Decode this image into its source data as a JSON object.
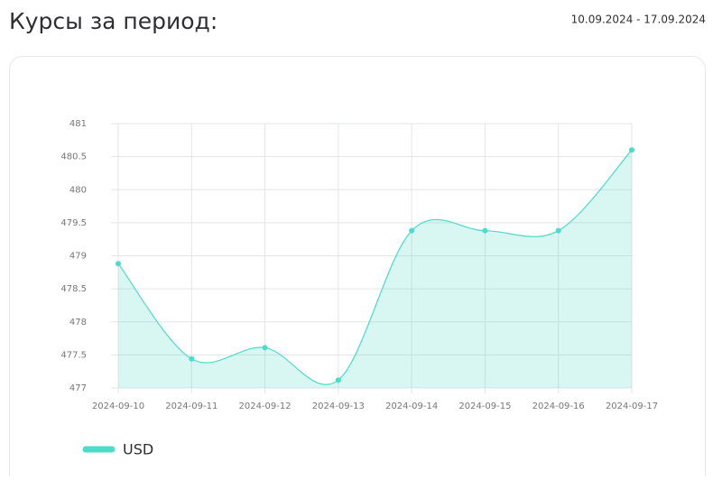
{
  "chart_data": {
    "type": "area",
    "title": "Курсы за период:",
    "subtitle": "10.09.2024 - 17.09.2024",
    "categories": [
      "2024-09-10",
      "2024-09-11",
      "2024-09-12",
      "2024-09-13",
      "2024-09-14",
      "2024-09-15",
      "2024-09-16",
      "2024-09-17"
    ],
    "series": [
      {
        "name": "USD",
        "color": "#4cdcc9",
        "values": [
          478.88,
          477.44,
          477.61,
          477.12,
          479.38,
          479.38,
          479.38,
          480.6
        ]
      }
    ],
    "ylim": [
      477,
      481
    ],
    "yticks": [
      477,
      477.5,
      478,
      478.5,
      479,
      479.5,
      480,
      480.5,
      481
    ],
    "grid": true,
    "legend": "bottom-left"
  }
}
